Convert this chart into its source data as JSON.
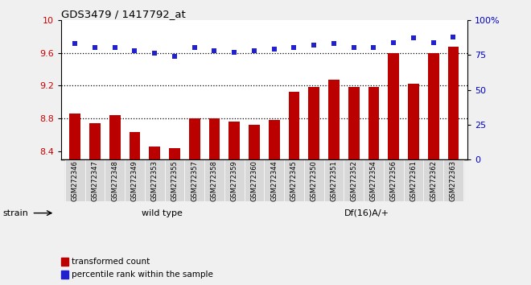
{
  "title": "GDS3479 / 1417792_at",
  "categories": [
    "GSM272346",
    "GSM272347",
    "GSM272348",
    "GSM272349",
    "GSM272353",
    "GSM272355",
    "GSM272357",
    "GSM272358",
    "GSM272359",
    "GSM272360",
    "GSM272344",
    "GSM272345",
    "GSM272350",
    "GSM272351",
    "GSM272352",
    "GSM272354",
    "GSM272356",
    "GSM272361",
    "GSM272362",
    "GSM272363"
  ],
  "bar_values": [
    8.86,
    8.74,
    8.84,
    8.64,
    8.46,
    8.44,
    8.8,
    8.8,
    8.76,
    8.72,
    8.78,
    9.13,
    9.18,
    9.27,
    9.18,
    9.18,
    9.6,
    9.22,
    9.6,
    9.67
  ],
  "dot_values": [
    83,
    80,
    80,
    78,
    76,
    74,
    80,
    78,
    77,
    78,
    79,
    80,
    82,
    83,
    80,
    80,
    84,
    87,
    84,
    88
  ],
  "ylim_left": [
    8.3,
    10.0
  ],
  "ylim_right": [
    0,
    100
  ],
  "yticks_left": [
    8.4,
    8.8,
    9.2,
    9.6,
    10.0
  ],
  "yticks_right": [
    0,
    25,
    50,
    75,
    100
  ],
  "hlines": [
    8.8,
    9.2,
    9.6
  ],
  "bar_color": "#bb0000",
  "dot_color": "#2222cc",
  "bar_bottom": 8.3,
  "wild_type_count": 10,
  "df_count": 10,
  "group1_label": "wild type",
  "group2_label": "Df(16)A/+",
  "group1_color": "#c8f0c8",
  "group2_color": "#44cc44",
  "strain_label": "strain",
  "legend1": "transformed count",
  "legend2": "percentile rank within the sample",
  "bg_color": "#d8d8d8",
  "plot_bg": "#ffffff",
  "tick_label_color_left": "#cc0000",
  "tick_label_color_right": "#0000cc"
}
